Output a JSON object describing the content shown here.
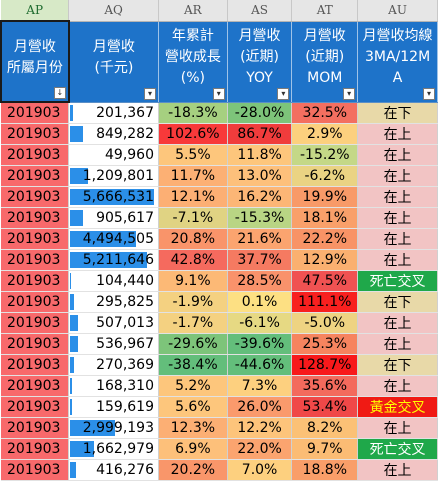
{
  "columns": [
    "AP",
    "AQ",
    "AR",
    "AS",
    "AT",
    "AU"
  ],
  "selected_column": "AP",
  "headers": [
    [
      "月營收",
      "所屬月份"
    ],
    [
      "月營收",
      "(千元)"
    ],
    [
      "年累計",
      "營收成長",
      "(%)"
    ],
    [
      "月營收",
      "(近期)",
      "YOY"
    ],
    [
      "月營收",
      "(近期)",
      "MOM"
    ],
    [
      "月營收均線",
      "3MA/12M",
      "A"
    ]
  ],
  "sort_indicator": "↓",
  "filter_indicator": "▾",
  "bar_color": "#2b8fe8",
  "rows": [
    {
      "month": "201903",
      "revenue": "201,367",
      "rev_fraction": 0.03,
      "ytd": "-18.3%",
      "ytd_color": "#a6d080",
      "yoy": "-28.0%",
      "yoy_color": "#7dc47a",
      "mom": "32.5%",
      "mom_color": "#f36f60",
      "trend": "在下",
      "trend_color": "#e8d9a8",
      "trend_text_color": "#000000"
    },
    {
      "month": "201903",
      "revenue": "849,282",
      "rev_fraction": 0.15,
      "ytd": "102.6%",
      "ytd_color": "#f8393a",
      "yoy": "86.7%",
      "yoy_color": "#f03c3c",
      "mom": "2.9%",
      "mom_color": "#fcd07e",
      "trend": "在上",
      "trend_color": "#f2c4c4",
      "trend_text_color": "#000000"
    },
    {
      "month": "201903",
      "revenue": "49,960",
      "rev_fraction": 0.0,
      "ytd": "5.5%",
      "ytd_color": "#fdc67c",
      "yoy": "11.8%",
      "yoy_color": "#fdc67c",
      "mom": "-15.2%",
      "mom_color": "#c4d887",
      "trend": "在上",
      "trend_color": "#f2c4c4",
      "trend_text_color": "#000000"
    },
    {
      "month": "201903",
      "revenue": "1,209,801",
      "rev_fraction": 0.22,
      "ytd": "11.7%",
      "ytd_color": "#fcb074",
      "yoy": "13.0%",
      "yoy_color": "#fdc07b",
      "mom": "-6.2%",
      "mom_color": "#ead383",
      "trend": "在上",
      "trend_color": "#f2c4c4",
      "trend_text_color": "#000000"
    },
    {
      "month": "201903",
      "revenue": "5,666,531",
      "rev_fraction": 1.0,
      "ytd": "12.1%",
      "ytd_color": "#fcaf74",
      "yoy": "16.2%",
      "yoy_color": "#fcb676",
      "mom": "19.9%",
      "mom_color": "#f89a68",
      "trend": "在上",
      "trend_color": "#f2c4c4",
      "trend_text_color": "#000000"
    },
    {
      "month": "201903",
      "revenue": "905,617",
      "rev_fraction": 0.16,
      "ytd": "-7.1%",
      "ytd_color": "#e0d383",
      "yoy": "-15.3%",
      "yoy_color": "#b9d584",
      "mom": "18.1%",
      "mom_color": "#f9a06a",
      "trend": "在上",
      "trend_color": "#f2c4c4",
      "trend_text_color": "#000000"
    },
    {
      "month": "201903",
      "revenue": "4,494,505",
      "rev_fraction": 0.79,
      "ytd": "20.8%",
      "ytd_color": "#f9946a",
      "yoy": "21.6%",
      "yoy_color": "#fba46f",
      "mom": "22.2%",
      "mom_color": "#f89366",
      "trend": "在上",
      "trend_color": "#f2c4c4",
      "trend_text_color": "#000000"
    },
    {
      "month": "201903",
      "revenue": "5,211,646",
      "rev_fraction": 0.92,
      "ytd": "42.8%",
      "ytd_color": "#f56a5e",
      "yoy": "37.7%",
      "yoy_color": "#f57a61",
      "mom": "12.9%",
      "mom_color": "#fab070",
      "trend": "在上",
      "trend_color": "#f2c4c4",
      "trend_text_color": "#000000"
    },
    {
      "month": "201903",
      "revenue": "104,440",
      "rev_fraction": 0.01,
      "ytd": "9.1%",
      "ytd_color": "#fcb976",
      "yoy": "28.5%",
      "yoy_color": "#f9926b",
      "mom": "47.5%",
      "mom_color": "#f05252",
      "trend": "死亡交叉",
      "trend_color": "#1fa84a",
      "trend_text_color": "#ffffff"
    },
    {
      "month": "201903",
      "revenue": "295,825",
      "rev_fraction": 0.05,
      "ytd": "-1.9%",
      "ytd_color": "#f4d181",
      "yoy": "0.1%",
      "yoy_color": "#fde083",
      "mom": "111.1%",
      "mom_color": "#f8201f",
      "trend": "在下",
      "trend_color": "#e8d9a8",
      "trend_text_color": "#000000"
    },
    {
      "month": "201903",
      "revenue": "507,013",
      "rev_fraction": 0.09,
      "ytd": "-1.7%",
      "ytd_color": "#f4d181",
      "yoy": "-6.1%",
      "yoy_color": "#e6d983",
      "mom": "-5.0%",
      "mom_color": "#eed382",
      "trend": "在上",
      "trend_color": "#f2c4c4",
      "trend_text_color": "#000000"
    },
    {
      "month": "201903",
      "revenue": "536,967",
      "rev_fraction": 0.09,
      "ytd": "-29.6%",
      "ytd_color": "#7dc47a",
      "yoy": "-39.6%",
      "yoy_color": "#63be7b",
      "mom": "25.3%",
      "mom_color": "#f6845f",
      "trend": "在上",
      "trend_color": "#f2c4c4",
      "trend_text_color": "#000000"
    },
    {
      "month": "201903",
      "revenue": "270,369",
      "rev_fraction": 0.05,
      "ytd": "-38.4%",
      "ytd_color": "#63be7b",
      "yoy": "-44.6%",
      "yoy_color": "#63be7b",
      "mom": "128.7%",
      "mom_color": "#f8191b",
      "trend": "在下",
      "trend_color": "#e8d9a8",
      "trend_text_color": "#000000"
    },
    {
      "month": "201903",
      "revenue": "168,310",
      "rev_fraction": 0.02,
      "ytd": "5.2%",
      "ytd_color": "#fdc67c",
      "yoy": "7.3%",
      "yoy_color": "#fdd07f",
      "mom": "35.6%",
      "mom_color": "#f36a5d",
      "trend": "在上",
      "trend_color": "#f2c4c4",
      "trend_text_color": "#000000"
    },
    {
      "month": "201903",
      "revenue": "159,619",
      "rev_fraction": 0.02,
      "ytd": "5.6%",
      "ytd_color": "#fdc67c",
      "yoy": "26.0%",
      "yoy_color": "#fa9a6c",
      "mom": "53.4%",
      "mom_color": "#f04848",
      "trend": "黃金交叉",
      "trend_color": "#f01a14",
      "trend_text_color": "#ffff00"
    },
    {
      "month": "201903",
      "revenue": "2,999,193",
      "rev_fraction": 0.53,
      "ytd": "12.3%",
      "ytd_color": "#fcaf74",
      "yoy": "12.2%",
      "yoy_color": "#fdc47b",
      "mom": "8.2%",
      "mom_color": "#fbc176",
      "trend": "在上",
      "trend_color": "#f2c4c4",
      "trend_text_color": "#000000"
    },
    {
      "month": "201903",
      "revenue": "1,662,979",
      "rev_fraction": 0.29,
      "ytd": "6.9%",
      "ytd_color": "#fdc07a",
      "yoy": "22.0%",
      "yoy_color": "#fba46f",
      "mom": "9.7%",
      "mom_color": "#fbbc74",
      "trend": "死亡交叉",
      "trend_color": "#1fa84a",
      "trend_text_color": "#ffffff"
    },
    {
      "month": "201903",
      "revenue": "416,276",
      "rev_fraction": 0.07,
      "ytd": "20.2%",
      "ytd_color": "#f9966a",
      "yoy": "7.0%",
      "yoy_color": "#fdd07f",
      "mom": "18.8%",
      "mom_color": "#f99e69",
      "trend": "在上",
      "trend_color": "#f2c4c4",
      "trend_text_color": "#000000"
    }
  ]
}
